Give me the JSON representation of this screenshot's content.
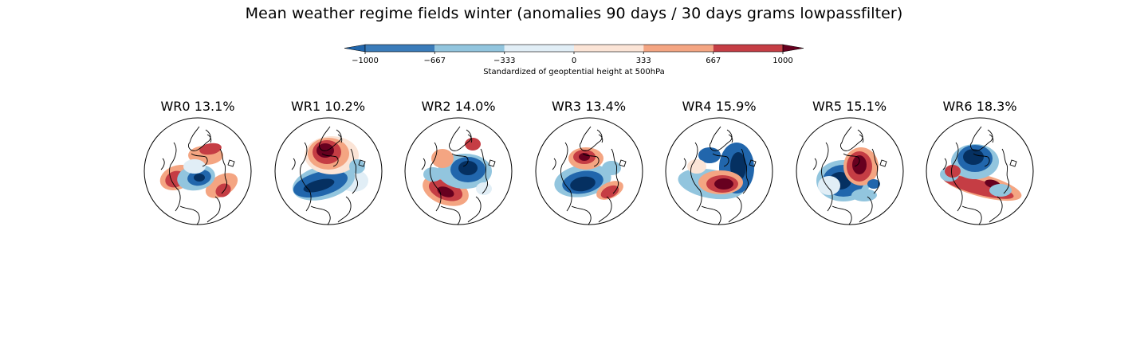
{
  "title": "Mean weather regime fields winter (anomalies 90 days / 30 days grams lowpassfilter)",
  "colorbar": {
    "label": "Standardized of geoptential height at 500hPa",
    "ticks": [
      "−1000",
      "−667",
      "−333",
      "0",
      "333",
      "667",
      "1000"
    ],
    "tick_values": [
      -1000,
      -667,
      -333,
      0,
      333,
      667,
      1000
    ],
    "colors": [
      "#2166ac",
      "#3a7cba",
      "#92c5de",
      "#e1eef6",
      "#fbe4d6",
      "#f4a582",
      "#c53d44",
      "#67001f"
    ],
    "extend": "both"
  },
  "chart_data": {
    "type": "heatmap",
    "projection": "north-polar-stereographic",
    "variable": "geopotential height anomaly at 500hPa",
    "levels": [
      -1000,
      -667,
      -333,
      0,
      333,
      667,
      1000
    ],
    "panels": [
      {
        "label": "WR0 13.1%",
        "regime": "WR0",
        "frequency_pct": 13.1
      },
      {
        "label": "WR1 10.2%",
        "regime": "WR1",
        "frequency_pct": 10.2
      },
      {
        "label": "WR2 14.0%",
        "regime": "WR2",
        "frequency_pct": 14.0
      },
      {
        "label": "WR3 13.4%",
        "regime": "WR3",
        "frequency_pct": 13.4
      },
      {
        "label": "WR4 15.9%",
        "regime": "WR4",
        "frequency_pct": 15.9
      },
      {
        "label": "WR5 15.1%",
        "regime": "WR5",
        "frequency_pct": 15.1
      },
      {
        "label": "WR6 18.3%",
        "regime": "WR6",
        "frequency_pct": 18.3
      }
    ]
  }
}
